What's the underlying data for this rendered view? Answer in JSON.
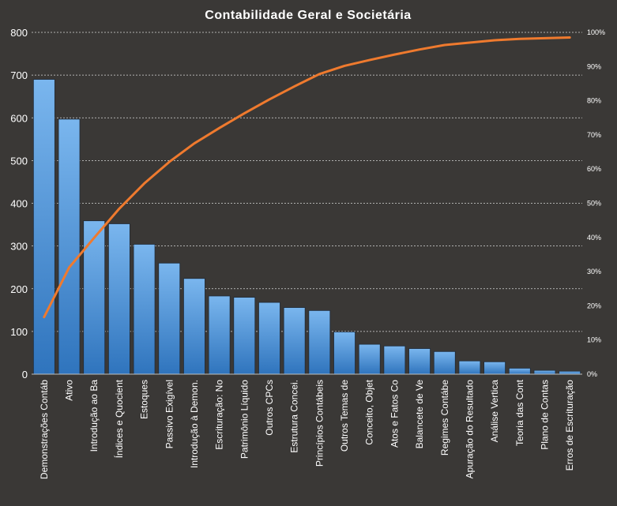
{
  "colors": {
    "background": "#3a3836",
    "bar_top": "#7ab6ee",
    "bar_bottom": "#2f74bd",
    "line": "#ef7a2e"
  },
  "chart_data": {
    "type": "bar",
    "title": "Contabilidade  Geral  e  Societária",
    "categories": [
      "Demonstrações Contáb",
      "Ativo",
      "Introdução  ao Ba",
      "Índices e Quocient",
      "Estoques",
      "Passivo Exigível",
      "Introdução à Demon.",
      "Escrituração: No",
      "Patrimônio Líquido",
      "Outros CPCs",
      "Estrutura Concei.",
      "Princípios Contábeis",
      "Outros Temas de",
      "Conceito, Objet",
      "Atos e Fatos Co",
      "Balancete de Ve",
      "Regimes Contábe",
      "Apuração do Resultado",
      "Análise Vertica",
      "Teoria das Cont",
      "Plano de Contas",
      "Erros de Escrituração"
    ],
    "series": [
      {
        "values": [
          690,
          597,
          359,
          352,
          304,
          260,
          224,
          183,
          180,
          168,
          156,
          149,
          99,
          70,
          66,
          60,
          53,
          31,
          29,
          14,
          9,
          7
        ]
      },
      {
        "values": [
          16.7,
          31.2,
          39.9,
          48.4,
          55.8,
          62.1,
          67.5,
          72.0,
          76.3,
          80.4,
          84.2,
          87.8,
          90.2,
          91.9,
          93.5,
          95.0,
          96.3,
          97.0,
          97.7,
          98.1,
          98.3,
          98.5
        ]
      }
    ],
    "y_left": {
      "min": 0,
      "max": 800,
      "ticks": [
        "0",
        "100",
        "200",
        "300",
        "400",
        "500",
        "600",
        "700",
        "800"
      ]
    },
    "y_right": {
      "min": 0,
      "max": 100,
      "unit": "%",
      "ticks": [
        "0%",
        "10%",
        "20%",
        "30%",
        "40%",
        "50%",
        "60%",
        "70%",
        "80%",
        "90%",
        "100%"
      ]
    },
    "grid": true,
    "legend": "none"
  }
}
